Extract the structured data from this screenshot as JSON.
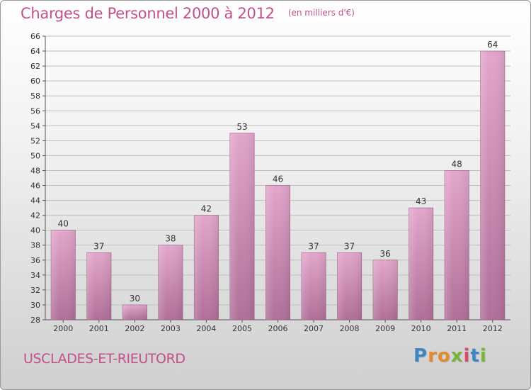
{
  "header": {
    "title": "Charges de Personnel 2000 à 2012",
    "subtitle": "(en milliers d'€)"
  },
  "footer": {
    "commune": "USCLADES-ET-RIEUTORD",
    "logo_letters": [
      "P",
      "r",
      "o",
      "x",
      "i",
      "t",
      "i"
    ]
  },
  "colors": {
    "bar_top": "#e3a6cb",
    "bar_bottom": "#b06f98",
    "title": "#c2508a",
    "grid": "#bfbfbf"
  },
  "chart_data": {
    "type": "bar",
    "categories": [
      "2000",
      "2001",
      "2002",
      "2003",
      "2004",
      "2005",
      "2006",
      "2007",
      "2008",
      "2009",
      "2010",
      "2011",
      "2012"
    ],
    "values": [
      40,
      37,
      30,
      38,
      42,
      53,
      46,
      37,
      37,
      36,
      43,
      48,
      64
    ],
    "data_labels": [
      "40",
      "37",
      "30",
      "38",
      "42",
      "53",
      "46",
      "37",
      "37",
      "36",
      "43",
      "48",
      "64"
    ],
    "title": "Charges de Personnel 2000 à 2012",
    "xlabel": "",
    "ylabel": "",
    "ylim": [
      28,
      66
    ],
    "yticks": [
      28,
      30,
      32,
      34,
      36,
      38,
      40,
      42,
      44,
      46,
      48,
      50,
      52,
      54,
      56,
      58,
      60,
      62,
      64,
      66
    ],
    "ytick_labels": [
      "28",
      "30",
      "32",
      "34",
      "36",
      "38",
      "40",
      "42",
      "44",
      "46",
      "48",
      "50",
      "52",
      "54",
      "56",
      "58",
      "60",
      "62",
      "64",
      "66"
    ],
    "grid": true,
    "legend": "none"
  }
}
